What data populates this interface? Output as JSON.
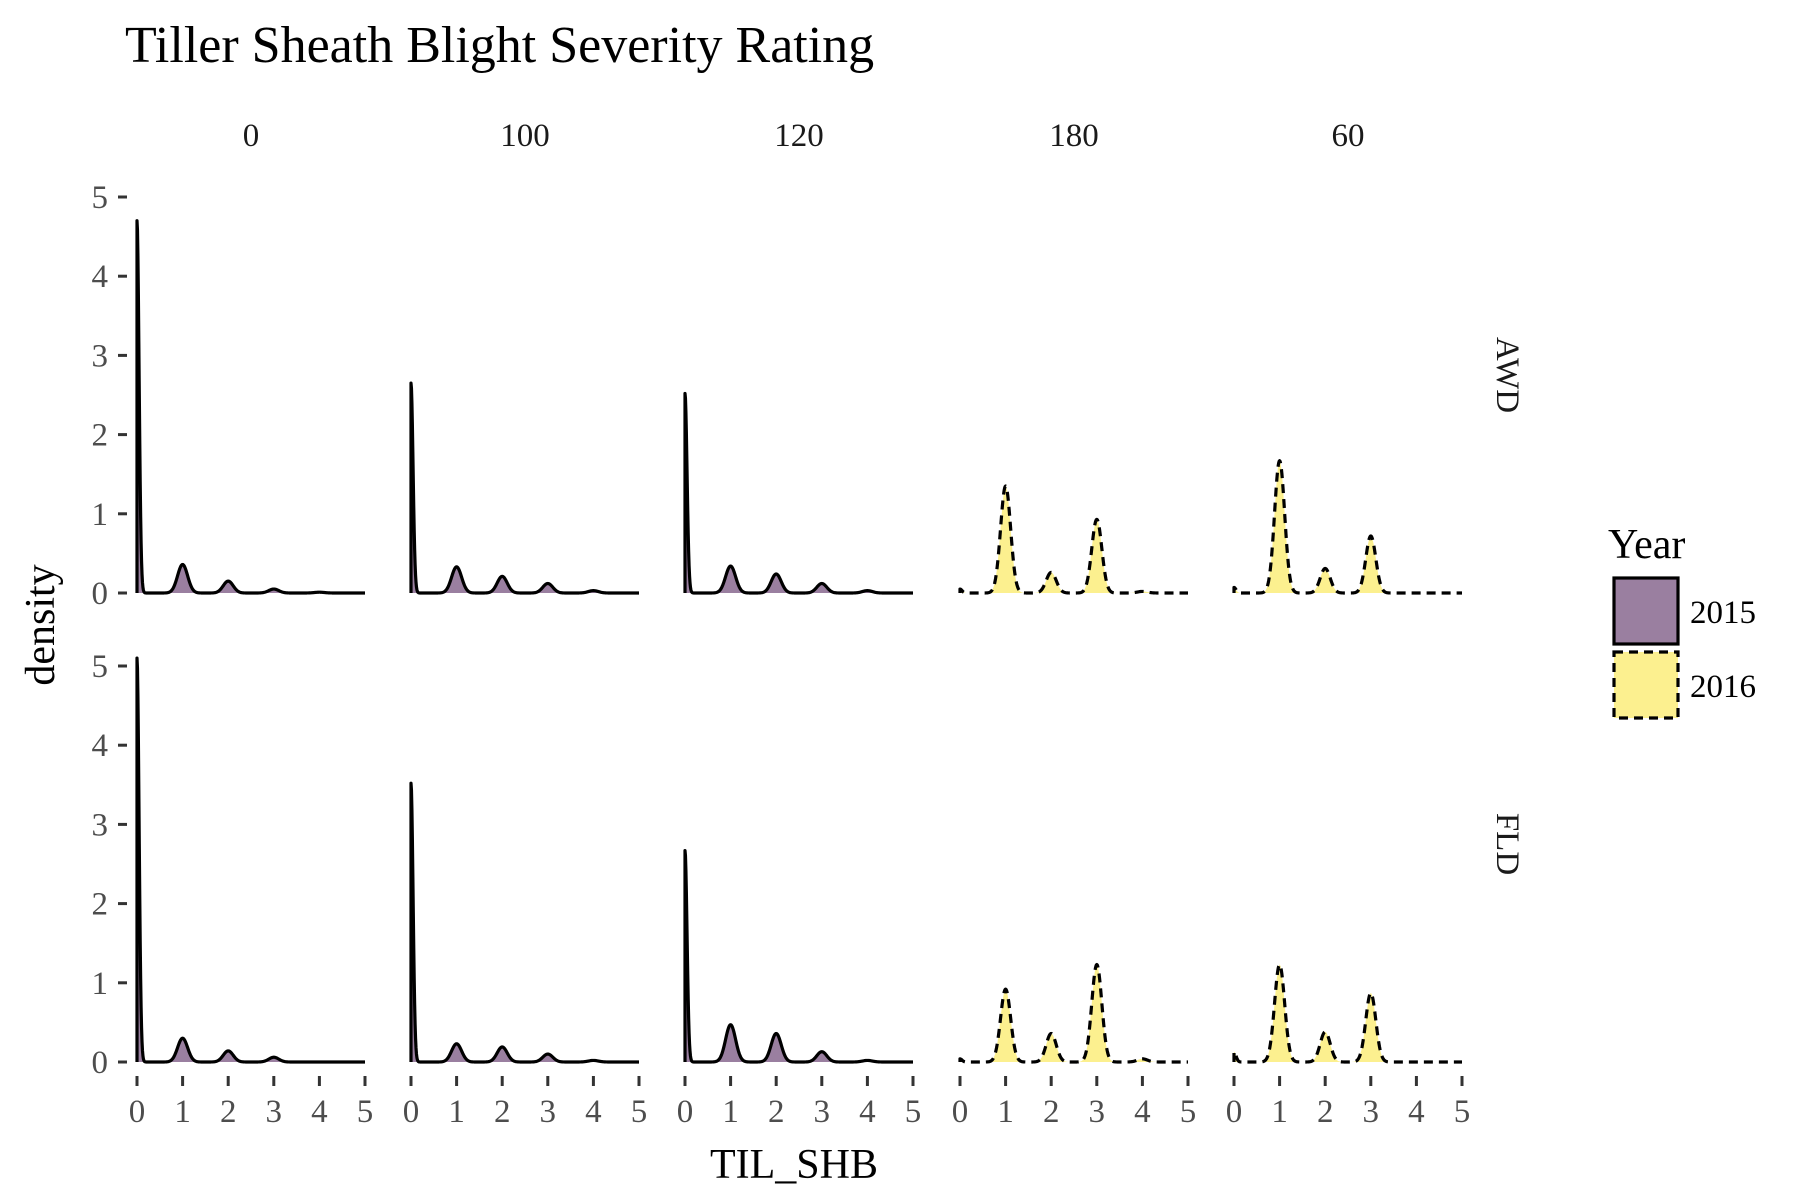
{
  "chart_data": {
    "type": "area",
    "subtype": "density-facet-grid",
    "title": "Tiller Sheath Blight Severity Rating",
    "xlabel": "TIL_SHB",
    "ylabel": "density",
    "xlim": [
      0,
      5
    ],
    "ylim": [
      0,
      5
    ],
    "x_ticks": [
      0,
      1,
      2,
      3,
      4,
      5
    ],
    "y_ticks": [
      0,
      1,
      2,
      3,
      4,
      5
    ],
    "col_facets": [
      "0",
      "100",
      "120",
      "180",
      "60"
    ],
    "row_facets": [
      "AWD",
      "FLD"
    ],
    "legend": {
      "title": "Year",
      "placement": "right",
      "entries": [
        {
          "label": "2015",
          "fill": "#9A7FA0",
          "line": "solid"
        },
        {
          "label": "2016",
          "fill": "#FCF08F",
          "line": "dashed"
        }
      ]
    },
    "panels": [
      {
        "row": "AWD",
        "col": "0",
        "year": "2015",
        "peaks": [
          [
            0,
            4.7
          ],
          [
            1,
            0.36
          ],
          [
            2,
            0.15
          ],
          [
            3,
            0.05
          ],
          [
            4,
            0.01
          ]
        ]
      },
      {
        "row": "AWD",
        "col": "100",
        "year": "2015",
        "peaks": [
          [
            0,
            2.65
          ],
          [
            1,
            0.33
          ],
          [
            2,
            0.21
          ],
          [
            3,
            0.12
          ],
          [
            4,
            0.03
          ]
        ]
      },
      {
        "row": "AWD",
        "col": "120",
        "year": "2015",
        "peaks": [
          [
            0,
            2.52
          ],
          [
            1,
            0.34
          ],
          [
            2,
            0.24
          ],
          [
            3,
            0.12
          ],
          [
            4,
            0.03
          ]
        ]
      },
      {
        "row": "AWD",
        "col": "180",
        "year": "2016",
        "peaks": [
          [
            0,
            0.05
          ],
          [
            1,
            1.35
          ],
          [
            2,
            0.26
          ],
          [
            3,
            0.93
          ],
          [
            4,
            0.02
          ]
        ]
      },
      {
        "row": "AWD",
        "col": "60",
        "year": "2016",
        "peaks": [
          [
            0,
            0.07
          ],
          [
            1,
            1.67
          ],
          [
            2,
            0.31
          ],
          [
            3,
            0.72
          ]
        ]
      },
      {
        "row": "FLD",
        "col": "0",
        "year": "2015",
        "peaks": [
          [
            0,
            5.1
          ],
          [
            1,
            0.3
          ],
          [
            2,
            0.14
          ],
          [
            3,
            0.06
          ]
        ]
      },
      {
        "row": "FLD",
        "col": "100",
        "year": "2015",
        "peaks": [
          [
            0,
            3.52
          ],
          [
            1,
            0.23
          ],
          [
            2,
            0.19
          ],
          [
            3,
            0.1
          ],
          [
            4,
            0.02
          ]
        ]
      },
      {
        "row": "FLD",
        "col": "120",
        "year": "2015",
        "peaks": [
          [
            0,
            2.67
          ],
          [
            1,
            0.47
          ],
          [
            2,
            0.36
          ],
          [
            3,
            0.13
          ],
          [
            4,
            0.02
          ]
        ]
      },
      {
        "row": "FLD",
        "col": "180",
        "year": "2016",
        "peaks": [
          [
            0,
            0.04
          ],
          [
            1,
            0.92
          ],
          [
            2,
            0.36
          ],
          [
            3,
            1.23
          ],
          [
            4,
            0.04
          ]
        ]
      },
      {
        "row": "FLD",
        "col": "60",
        "year": "2016",
        "peaks": [
          [
            0,
            0.13
          ],
          [
            1,
            1.23
          ],
          [
            2,
            0.38
          ],
          [
            3,
            0.87
          ]
        ]
      }
    ]
  }
}
